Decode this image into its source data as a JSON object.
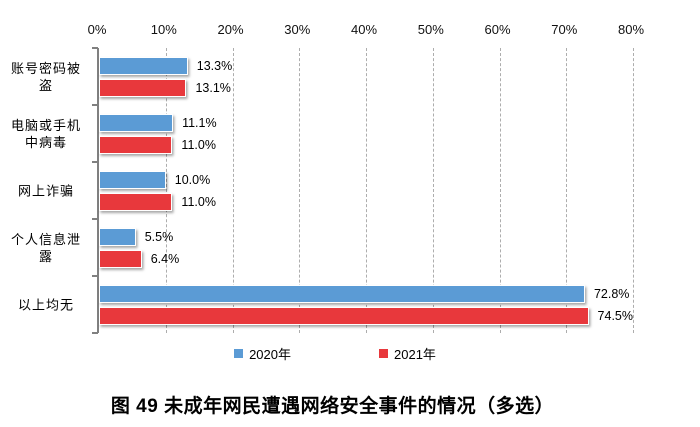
{
  "caption": "图 49 未成年网民遭遇网络安全事件的情况（多选）",
  "colors": {
    "series_2020": "#5B9BD5",
    "series_2021": "#E8383C",
    "gridline": "#ADADAD",
    "axis": "#808080",
    "background": "#FFFFFF",
    "text": "#000000"
  },
  "chart_data": {
    "type": "bar",
    "orientation": "horizontal",
    "title": "",
    "xlabel": "",
    "ylabel": "",
    "grid": "vertical-dashed",
    "x_axis": {
      "position": "top",
      "min": 0,
      "max": 80,
      "tick_step": 10,
      "tick_labels": [
        "0%",
        "10%",
        "20%",
        "30%",
        "40%",
        "50%",
        "60%",
        "70%",
        "80%"
      ]
    },
    "categories": [
      "账号密码被盗",
      "电脑或手机中病毒",
      "网上诈骗",
      "个人信息泄露",
      "以上均无"
    ],
    "categories_wrapped": [
      [
        "账号密码被",
        "盗"
      ],
      [
        "电脑或手机",
        "中病毒"
      ],
      [
        "网上诈骗"
      ],
      [
        "个人信息泄",
        "露"
      ],
      [
        "以上均无"
      ]
    ],
    "series": [
      {
        "name": "2020年",
        "color": "#5B9BD5",
        "values": [
          13.3,
          11.1,
          10.0,
          5.5,
          72.8
        ],
        "labels": [
          "13.3%",
          "11.1%",
          "10.0%",
          "5.5%",
          "72.8%"
        ]
      },
      {
        "name": "2021年",
        "color": "#E8383C",
        "values": [
          13.1,
          11.0,
          11.0,
          6.4,
          74.5
        ],
        "labels": [
          "13.1%",
          "11.0%",
          "11.0%",
          "6.4%",
          "74.5%"
        ]
      }
    ],
    "legend": {
      "position": "bottom",
      "items": [
        "2020年",
        "2021年"
      ]
    }
  }
}
